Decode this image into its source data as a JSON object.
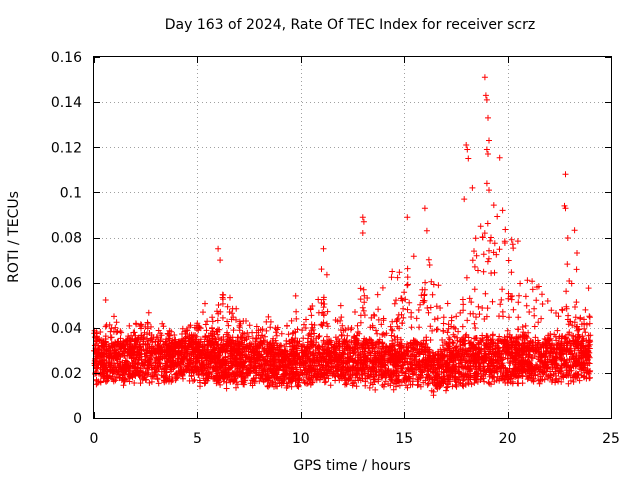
{
  "chart_data": {
    "type": "scatter",
    "title": "Day 163 of 2024, Rate Of TEC Index for receiver scrz",
    "xlabel": "GPS time / hours",
    "ylabel": "ROTI / TECUs",
    "xlim": [
      0,
      25
    ],
    "ylim": [
      0,
      0.16
    ],
    "xticks": [
      0,
      5,
      10,
      15,
      20,
      25
    ],
    "xtick_labels": [
      "0",
      "5",
      "10",
      "15",
      "20",
      "25"
    ],
    "yticks": [
      0,
      0.02,
      0.04,
      0.06,
      0.08,
      0.1,
      0.12,
      0.14,
      0.16
    ],
    "ytick_labels": [
      "0",
      "0.02",
      "0.04",
      "0.06",
      "0.08",
      "0.1",
      "0.12",
      "0.14",
      "0.16"
    ],
    "grid": true,
    "marker": "+",
    "color": "#ff0000",
    "series": [
      {
        "name": "ROTI",
        "description_note": "dense band of values mostly 0.01-0.035 across 0-24 h",
        "x": [
          0.0,
          0.1,
          0.2,
          0.3,
          0.4,
          0.5,
          0.6,
          0.7,
          0.8,
          0.9,
          1.0,
          1.2,
          1.4,
          1.6,
          1.8,
          2.0,
          2.2,
          2.4,
          2.6,
          2.8,
          3.0,
          3.2,
          3.4,
          3.6,
          3.8,
          4.0,
          4.2,
          4.4,
          4.6,
          4.8,
          5.0,
          5.2,
          5.4,
          5.6,
          5.8,
          6.0,
          6.2,
          6.4,
          6.6,
          6.8,
          7.0,
          7.2,
          7.4,
          7.6,
          7.8,
          8.0,
          8.2,
          8.4,
          8.6,
          8.8,
          9.0,
          9.2,
          9.4,
          9.6,
          9.8,
          10.0,
          10.2,
          10.4,
          10.6,
          10.8,
          11.0,
          11.2,
          11.4,
          11.6,
          11.8,
          12.0,
          12.2,
          12.4,
          12.6,
          12.8,
          13.0,
          13.2,
          13.4,
          13.6,
          13.8,
          14.0,
          14.2,
          14.4,
          14.6,
          14.8,
          15.0,
          15.2,
          15.4,
          15.6,
          15.8,
          16.0,
          16.2,
          16.4,
          16.6,
          16.8,
          17.0,
          17.2,
          17.4,
          17.6,
          17.8,
          18.0,
          18.2,
          18.4,
          18.6,
          18.8,
          19.0,
          19.2,
          19.4,
          19.6,
          19.8,
          20.0,
          20.2,
          20.4,
          20.6,
          20.8,
          21.0,
          21.2,
          21.4,
          21.6,
          21.8,
          22.0,
          22.2,
          22.4,
          22.6,
          22.8,
          23.0,
          23.2,
          23.4,
          23.6,
          23.8,
          24.0
        ],
        "y_band_low": [
          0.012,
          0.01,
          0.009,
          0.01,
          0.009,
          0.009,
          0.008,
          0.008,
          0.01,
          0.009,
          0.01,
          0.01,
          0.009,
          0.01,
          0.009,
          0.01,
          0.01,
          0.01,
          0.009,
          0.01,
          0.009,
          0.01,
          0.01,
          0.01,
          0.01,
          0.01,
          0.01,
          0.012,
          0.011,
          0.01,
          0.01,
          0.01,
          0.009,
          0.01,
          0.01,
          0.009,
          0.01,
          0.008,
          0.009,
          0.009,
          0.009,
          0.01,
          0.01,
          0.009,
          0.009,
          0.01,
          0.009,
          0.008,
          0.009,
          0.009,
          0.008,
          0.008,
          0.009,
          0.009,
          0.009,
          0.008,
          0.008,
          0.009,
          0.009,
          0.009,
          0.01,
          0.009,
          0.009,
          0.009,
          0.009,
          0.009,
          0.009,
          0.009,
          0.01,
          0.009,
          0.009,
          0.009,
          0.008,
          0.008,
          0.009,
          0.009,
          0.009,
          0.008,
          0.008,
          0.009,
          0.008,
          0.008,
          0.008,
          0.008,
          0.008,
          0.009,
          0.008,
          0.006,
          0.005,
          0.006,
          0.007,
          0.008,
          0.008,
          0.008,
          0.009,
          0.009,
          0.009,
          0.01,
          0.01,
          0.01,
          0.01,
          0.01,
          0.01,
          0.01,
          0.01,
          0.01,
          0.01,
          0.01,
          0.01,
          0.01,
          0.01,
          0.01,
          0.01,
          0.01,
          0.01,
          0.01,
          0.01,
          0.01,
          0.01,
          0.01,
          0.01,
          0.011,
          0.011,
          0.011,
          0.011,
          0.012
        ],
        "y_band_high": [
          0.043,
          0.04,
          0.038,
          0.042,
          0.04,
          0.045,
          0.059,
          0.05,
          0.047,
          0.045,
          0.046,
          0.04,
          0.043,
          0.042,
          0.048,
          0.047,
          0.044,
          0.046,
          0.052,
          0.045,
          0.043,
          0.04,
          0.044,
          0.041,
          0.039,
          0.04,
          0.042,
          0.041,
          0.044,
          0.048,
          0.05,
          0.047,
          0.053,
          0.05,
          0.048,
          0.06,
          0.075,
          0.055,
          0.059,
          0.052,
          0.05,
          0.046,
          0.043,
          0.042,
          0.04,
          0.043,
          0.042,
          0.054,
          0.048,
          0.044,
          0.05,
          0.047,
          0.045,
          0.052,
          0.055,
          0.05,
          0.052,
          0.055,
          0.058,
          0.06,
          0.064,
          0.075,
          0.056,
          0.052,
          0.05,
          0.053,
          0.05,
          0.048,
          0.05,
          0.052,
          0.065,
          0.089,
          0.065,
          0.058,
          0.06,
          0.062,
          0.06,
          0.065,
          0.068,
          0.07,
          0.08,
          0.089,
          0.075,
          0.07,
          0.065,
          0.093,
          0.082,
          0.074,
          0.068,
          0.06,
          0.055,
          0.05,
          0.055,
          0.058,
          0.06,
          0.065,
          0.079,
          0.121,
          0.097,
          0.085,
          0.084,
          0.151,
          0.14,
          0.123,
          0.105,
          0.076,
          0.078,
          0.08,
          0.079,
          0.074,
          0.07,
          0.068,
          0.064,
          0.06,
          0.056,
          0.052,
          0.05,
          0.05,
          0.06,
          0.07,
          0.108,
          0.094,
          0.068,
          0.06,
          0.061,
          0.056
        ]
      }
    ],
    "notable_peaks": [
      {
        "x": 18.9,
        "y": 0.151
      },
      {
        "x": 18.95,
        "y": 0.143
      },
      {
        "x": 19.0,
        "y": 0.141
      },
      {
        "x": 19.05,
        "y": 0.133
      },
      {
        "x": 19.1,
        "y": 0.123
      },
      {
        "x": 18.0,
        "y": 0.121
      },
      {
        "x": 18.05,
        "y": 0.119
      },
      {
        "x": 18.1,
        "y": 0.115
      },
      {
        "x": 19.0,
        "y": 0.119
      },
      {
        "x": 19.05,
        "y": 0.117
      },
      {
        "x": 22.8,
        "y": 0.108
      },
      {
        "x": 19.0,
        "y": 0.104
      },
      {
        "x": 19.1,
        "y": 0.101
      },
      {
        "x": 18.3,
        "y": 0.102
      },
      {
        "x": 17.9,
        "y": 0.097
      },
      {
        "x": 22.75,
        "y": 0.094
      },
      {
        "x": 22.8,
        "y": 0.093
      },
      {
        "x": 16.0,
        "y": 0.093
      },
      {
        "x": 15.15,
        "y": 0.089
      },
      {
        "x": 13.0,
        "y": 0.089
      },
      {
        "x": 13.05,
        "y": 0.087
      },
      {
        "x": 18.7,
        "y": 0.085
      },
      {
        "x": 13.0,
        "y": 0.082
      },
      {
        "x": 16.1,
        "y": 0.083
      },
      {
        "x": 18.8,
        "y": 0.08
      },
      {
        "x": 20.2,
        "y": 0.079
      },
      {
        "x": 6.0,
        "y": 0.075
      },
      {
        "x": 11.1,
        "y": 0.075
      },
      {
        "x": 6.1,
        "y": 0.07
      },
      {
        "x": 11.0,
        "y": 0.066
      }
    ]
  }
}
